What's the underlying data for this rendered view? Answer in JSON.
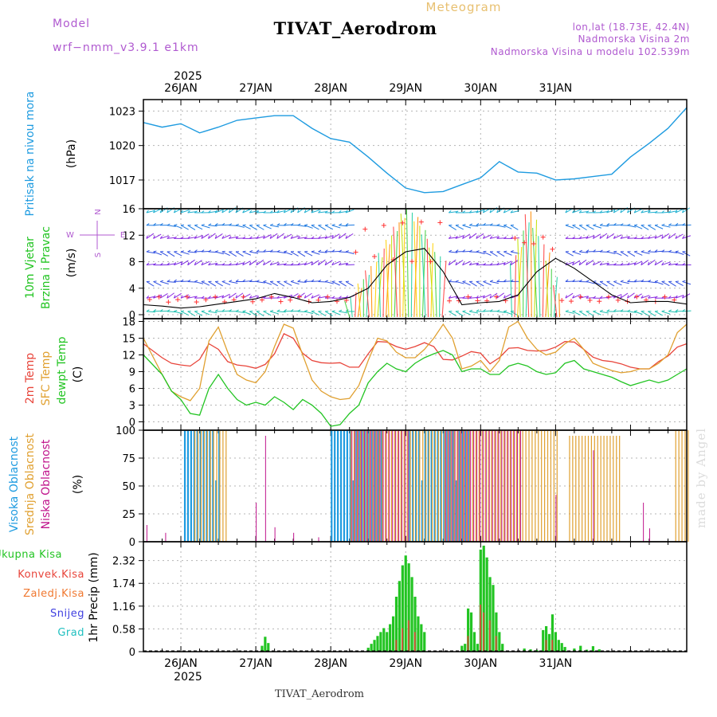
{
  "header": {
    "meteogram_label": "Meteogram",
    "title": "TIVAT_Aerodrom",
    "model_label": "Model",
    "model_name": "wrf−nmm_v3.9.1  e1km",
    "location": "lon,lat (18.73E, 42.4N)",
    "elevation": "Nadmorska Visina 2m",
    "model_elevation": "Nadmorska Visina u modelu 102.539m",
    "credit": "made by Angel",
    "footer": "TIVAT_Aerodrom"
  },
  "time_axis": {
    "year": "2025",
    "days": [
      "26JAN",
      "27JAN",
      "28JAN",
      "29JAN",
      "30JAN",
      "31JAN"
    ]
  },
  "colors": {
    "pressure": "#1e9be0",
    "temp2m": "#e8443a",
    "sfc_temp": "#e0a030",
    "dewpoint": "#22c422",
    "high_cloud": "#1e9be0",
    "mid_cloud": "#e0a030",
    "low_cloud": "#c0148c",
    "total_precip": "#22c422",
    "conv_precip": "#e8443a",
    "frozen": "#f07830",
    "snow": "#4040e0",
    "graupel": "#20c0c0",
    "wind_label": "#22c422",
    "header_purple": "#b05ad0",
    "meteogram_orange": "#e8c070"
  },
  "chart_data": [
    {
      "type": "line",
      "panel": "pressure",
      "labels": [
        "Pritisak na nivou mora",
        "(hPa)"
      ],
      "x_unit": "hours from 26 JAN 00 UTC",
      "x": [
        -12,
        -6,
        0,
        6,
        12,
        18,
        24,
        30,
        36,
        42,
        48,
        54,
        60,
        66,
        72,
        78,
        84,
        90,
        96,
        102,
        108,
        114,
        120,
        126,
        132,
        138,
        144,
        150,
        156,
        162
      ],
      "series": [
        {
          "values": [
            1022.0,
            1021.6,
            1021.9,
            1021.1,
            1021.6,
            1022.2,
            1022.4,
            1022.6,
            1022.6,
            1021.5,
            1020.6,
            1020.3,
            1019.0,
            1017.6,
            1016.3,
            1015.9,
            1016.0,
            1016.6,
            1017.2,
            1018.6,
            1017.7,
            1017.6,
            1017.0,
            1017.1,
            1017.3,
            1017.5,
            1019.0,
            1020.2,
            1021.5,
            1023.3
          ]
        }
      ],
      "ylim": [
        1014.5,
        1024.0
      ],
      "yticks": [
        1017,
        1020,
        1023
      ]
    },
    {
      "type": "line",
      "panel": "wind",
      "labels": [
        "10m Vjetar",
        "Brzina i Pravac",
        "(m/s)"
      ],
      "compass": [
        "N",
        "E",
        "S",
        "W"
      ],
      "x_unit": "hours from 26 JAN 00 UTC",
      "x": [
        -12,
        -6,
        0,
        6,
        12,
        18,
        24,
        30,
        36,
        42,
        48,
        54,
        60,
        66,
        72,
        78,
        84,
        90,
        96,
        102,
        108,
        114,
        120,
        126,
        132,
        138,
        144,
        150,
        156,
        162
      ],
      "series": [
        {
          "values": [
            1.5,
            1.3,
            1.0,
            1.2,
            1.6,
            2.0,
            2.4,
            3.2,
            2.6,
            1.8,
            2.0,
            2.6,
            4.0,
            7.5,
            9.5,
            10.0,
            6.5,
            1.5,
            1.8,
            2.0,
            3.0,
            6.5,
            8.5,
            7.0,
            5.0,
            3.0,
            1.8,
            2.0,
            2.0,
            1.6
          ]
        }
      ],
      "ylim": [
        -0.6,
        16
      ],
      "yticks": [
        0,
        4,
        8,
        12,
        16
      ]
    },
    {
      "type": "line",
      "panel": "temperature",
      "labels": [
        "2m Temp",
        "SFC Temp",
        "dewpt Temp",
        "(C)"
      ],
      "x_unit": "hours from 26 JAN 00 UTC",
      "x": [
        -12,
        -6,
        -3,
        0,
        3,
        6,
        9,
        12,
        15,
        18,
        21,
        24,
        27,
        30,
        33,
        36,
        39,
        42,
        45,
        48,
        51,
        54,
        57,
        60,
        63,
        66,
        69,
        72,
        75,
        78,
        81,
        84,
        87,
        90,
        93,
        96,
        99,
        102,
        105,
        108,
        111,
        114,
        117,
        120,
        123,
        126,
        129,
        132,
        135,
        138,
        141,
        144,
        147,
        150,
        153,
        156,
        159,
        162
      ],
      "series": [
        {
          "name": "2m Temp",
          "values": [
            14.0,
            11.5,
            10.5,
            10.2,
            10.0,
            11.2,
            14.0,
            13.0,
            10.8,
            10.2,
            10.0,
            9.6,
            10.3,
            12.2,
            15.8,
            15.0,
            12.3,
            11.0,
            10.6,
            10.5,
            10.6,
            9.8,
            9.8,
            12.2,
            14.4,
            14.3,
            13.5,
            13.0,
            13.5,
            14.2,
            13.5,
            11.2,
            11.1,
            11.8,
            12.6,
            12.3,
            10.4,
            11.5,
            13.2,
            13.3,
            12.8,
            12.7,
            12.8,
            13.4,
            14.4,
            14.3,
            13.0,
            11.6,
            11.0,
            10.8,
            10.4,
            9.8,
            9.5,
            9.5,
            10.8,
            11.8,
            13.4,
            14.0
          ]
        },
        {
          "name": "SFC Temp",
          "values": [
            15.0,
            8.5,
            5.5,
            4.5,
            3.8,
            6.0,
            14.5,
            17.0,
            12.5,
            8.5,
            7.5,
            7.0,
            9.0,
            13.5,
            17.5,
            16.8,
            12.0,
            7.5,
            5.5,
            4.5,
            4.0,
            4.2,
            6.5,
            11.0,
            15.0,
            14.5,
            12.5,
            11.5,
            11.5,
            13.0,
            15.0,
            17.5,
            15.0,
            9.5,
            10.0,
            11.0,
            9.0,
            11.0,
            17.0,
            18.0,
            15.0,
            13.0,
            12.0,
            12.5,
            14.0,
            15.0,
            13.0,
            10.5,
            9.8,
            9.2,
            8.8,
            9.0,
            9.5,
            9.5,
            10.5,
            12.0,
            16.0,
            17.5
          ]
        },
        {
          "name": "dewpt Temp",
          "values": [
            12.0,
            8.5,
            5.5,
            4.0,
            1.5,
            1.2,
            6.0,
            8.5,
            6.0,
            4.0,
            3.0,
            3.5,
            3.0,
            4.5,
            3.5,
            2.2,
            4.0,
            3.0,
            1.5,
            -0.8,
            -0.5,
            1.5,
            3.0,
            7.0,
            9.0,
            10.5,
            9.5,
            9.0,
            10.5,
            11.5,
            12.2,
            12.8,
            12.0,
            9.0,
            9.5,
            9.5,
            8.5,
            8.5,
            10.0,
            10.5,
            10.0,
            9.0,
            8.5,
            8.8,
            10.5,
            11.0,
            9.5,
            9.0,
            8.5,
            8.0,
            7.2,
            6.5,
            7.0,
            7.5,
            7.0,
            7.5,
            8.5,
            9.5
          ]
        }
      ],
      "ylim": [
        -1.5,
        18.5
      ],
      "yticks": [
        0,
        3,
        6,
        9,
        12,
        15,
        18
      ]
    },
    {
      "type": "bar",
      "panel": "cloud_cover",
      "labels": [
        "Visoka Oblacnost",
        "Srednja Oblacnost",
        "Niska Oblacnost",
        "(%)"
      ],
      "x_unit": "hours from 26 JAN 00 UTC",
      "series": [
        {
          "name": "Visoka Oblacnost",
          "segments": [
            {
              "start": 1,
              "end": 12,
              "value": 100
            },
            {
              "start": 48,
              "end": 64,
              "value": 100
            },
            {
              "start": 73,
              "end": 92,
              "value": 100
            }
          ]
        },
        {
          "name": "Srednja Oblacnost",
          "segments": [
            {
              "start": 4,
              "end": 14,
              "value": 100
            },
            {
              "start": 54,
              "end": 120,
              "value": 100
            },
            {
              "start": 124,
              "end": 140,
              "value": 95
            },
            {
              "start": 158,
              "end": 162,
              "value": 100
            }
          ]
        },
        {
          "name": "Niska Oblacnost",
          "segments": [
            {
              "start": 54,
              "end": 72,
              "value": 100
            },
            {
              "start": 84,
              "end": 108,
              "value": 100
            }
          ]
        }
      ],
      "ylim": [
        0,
        100
      ],
      "yticks": [
        0,
        25,
        50,
        75,
        100
      ]
    },
    {
      "type": "bar",
      "panel": "precipitation",
      "labels": [
        "Ukupna Kisa",
        "Konvek.Kisa",
        "Zaledj.Kisa",
        "Snijeg",
        "Grad",
        "1hr Precip (mm)"
      ],
      "x_unit": "hours from 26 JAN 00 UTC",
      "series": [
        {
          "name": "Ukupna Kisa",
          "points": [
            [
              26,
              0.15
            ],
            [
              27,
              0.38
            ],
            [
              28,
              0.22
            ],
            [
              60,
              0.1
            ],
            [
              61,
              0.2
            ],
            [
              62,
              0.3
            ],
            [
              63,
              0.4
            ],
            [
              64,
              0.5
            ],
            [
              65,
              0.6
            ],
            [
              66,
              0.5
            ],
            [
              67,
              0.7
            ],
            [
              68,
              0.9
            ],
            [
              69,
              1.4
            ],
            [
              70,
              1.8
            ],
            [
              71,
              2.2
            ],
            [
              72,
              2.45
            ],
            [
              73,
              2.25
            ],
            [
              74,
              1.9
            ],
            [
              75,
              1.4
            ],
            [
              76,
              0.9
            ],
            [
              77,
              0.7
            ],
            [
              78,
              0.5
            ],
            [
              90,
              0.15
            ],
            [
              91,
              0.2
            ],
            [
              92,
              1.1
            ],
            [
              93,
              1.0
            ],
            [
              94,
              0.5
            ],
            [
              95,
              0.2
            ],
            [
              96,
              2.6
            ],
            [
              97,
              2.7
            ],
            [
              98,
              2.4
            ],
            [
              99,
              1.9
            ],
            [
              100,
              1.7
            ],
            [
              101,
              1.0
            ],
            [
              102,
              0.5
            ],
            [
              103,
              0.2
            ],
            [
              110,
              0.08
            ],
            [
              112,
              0.06
            ],
            [
              114,
              0.04
            ],
            [
              116,
              0.55
            ],
            [
              117,
              0.65
            ],
            [
              118,
              0.45
            ],
            [
              119,
              0.95
            ],
            [
              120,
              0.5
            ],
            [
              121,
              0.3
            ],
            [
              122,
              0.22
            ],
            [
              123,
              0.12
            ],
            [
              126,
              0.08
            ],
            [
              128,
              0.15
            ],
            [
              130,
              0.05
            ],
            [
              132,
              0.14
            ],
            [
              134,
              0.06
            ]
          ]
        },
        {
          "name": "Konvek.Kisa",
          "points": [
            [
              69,
              0.3
            ],
            [
              71,
              0.6
            ],
            [
              73,
              0.8
            ],
            [
              75,
              0.5
            ],
            [
              92,
              0.4
            ],
            [
              96,
              1.2
            ],
            [
              97,
              1.0
            ],
            [
              99,
              0.8
            ],
            [
              101,
              0.4
            ],
            [
              117,
              0.3
            ],
            [
              119,
              0.3
            ]
          ]
        }
      ],
      "ylim": [
        0,
        2.8
      ],
      "yticks": [
        0,
        0.58,
        1.16,
        1.74,
        2.32
      ]
    }
  ]
}
